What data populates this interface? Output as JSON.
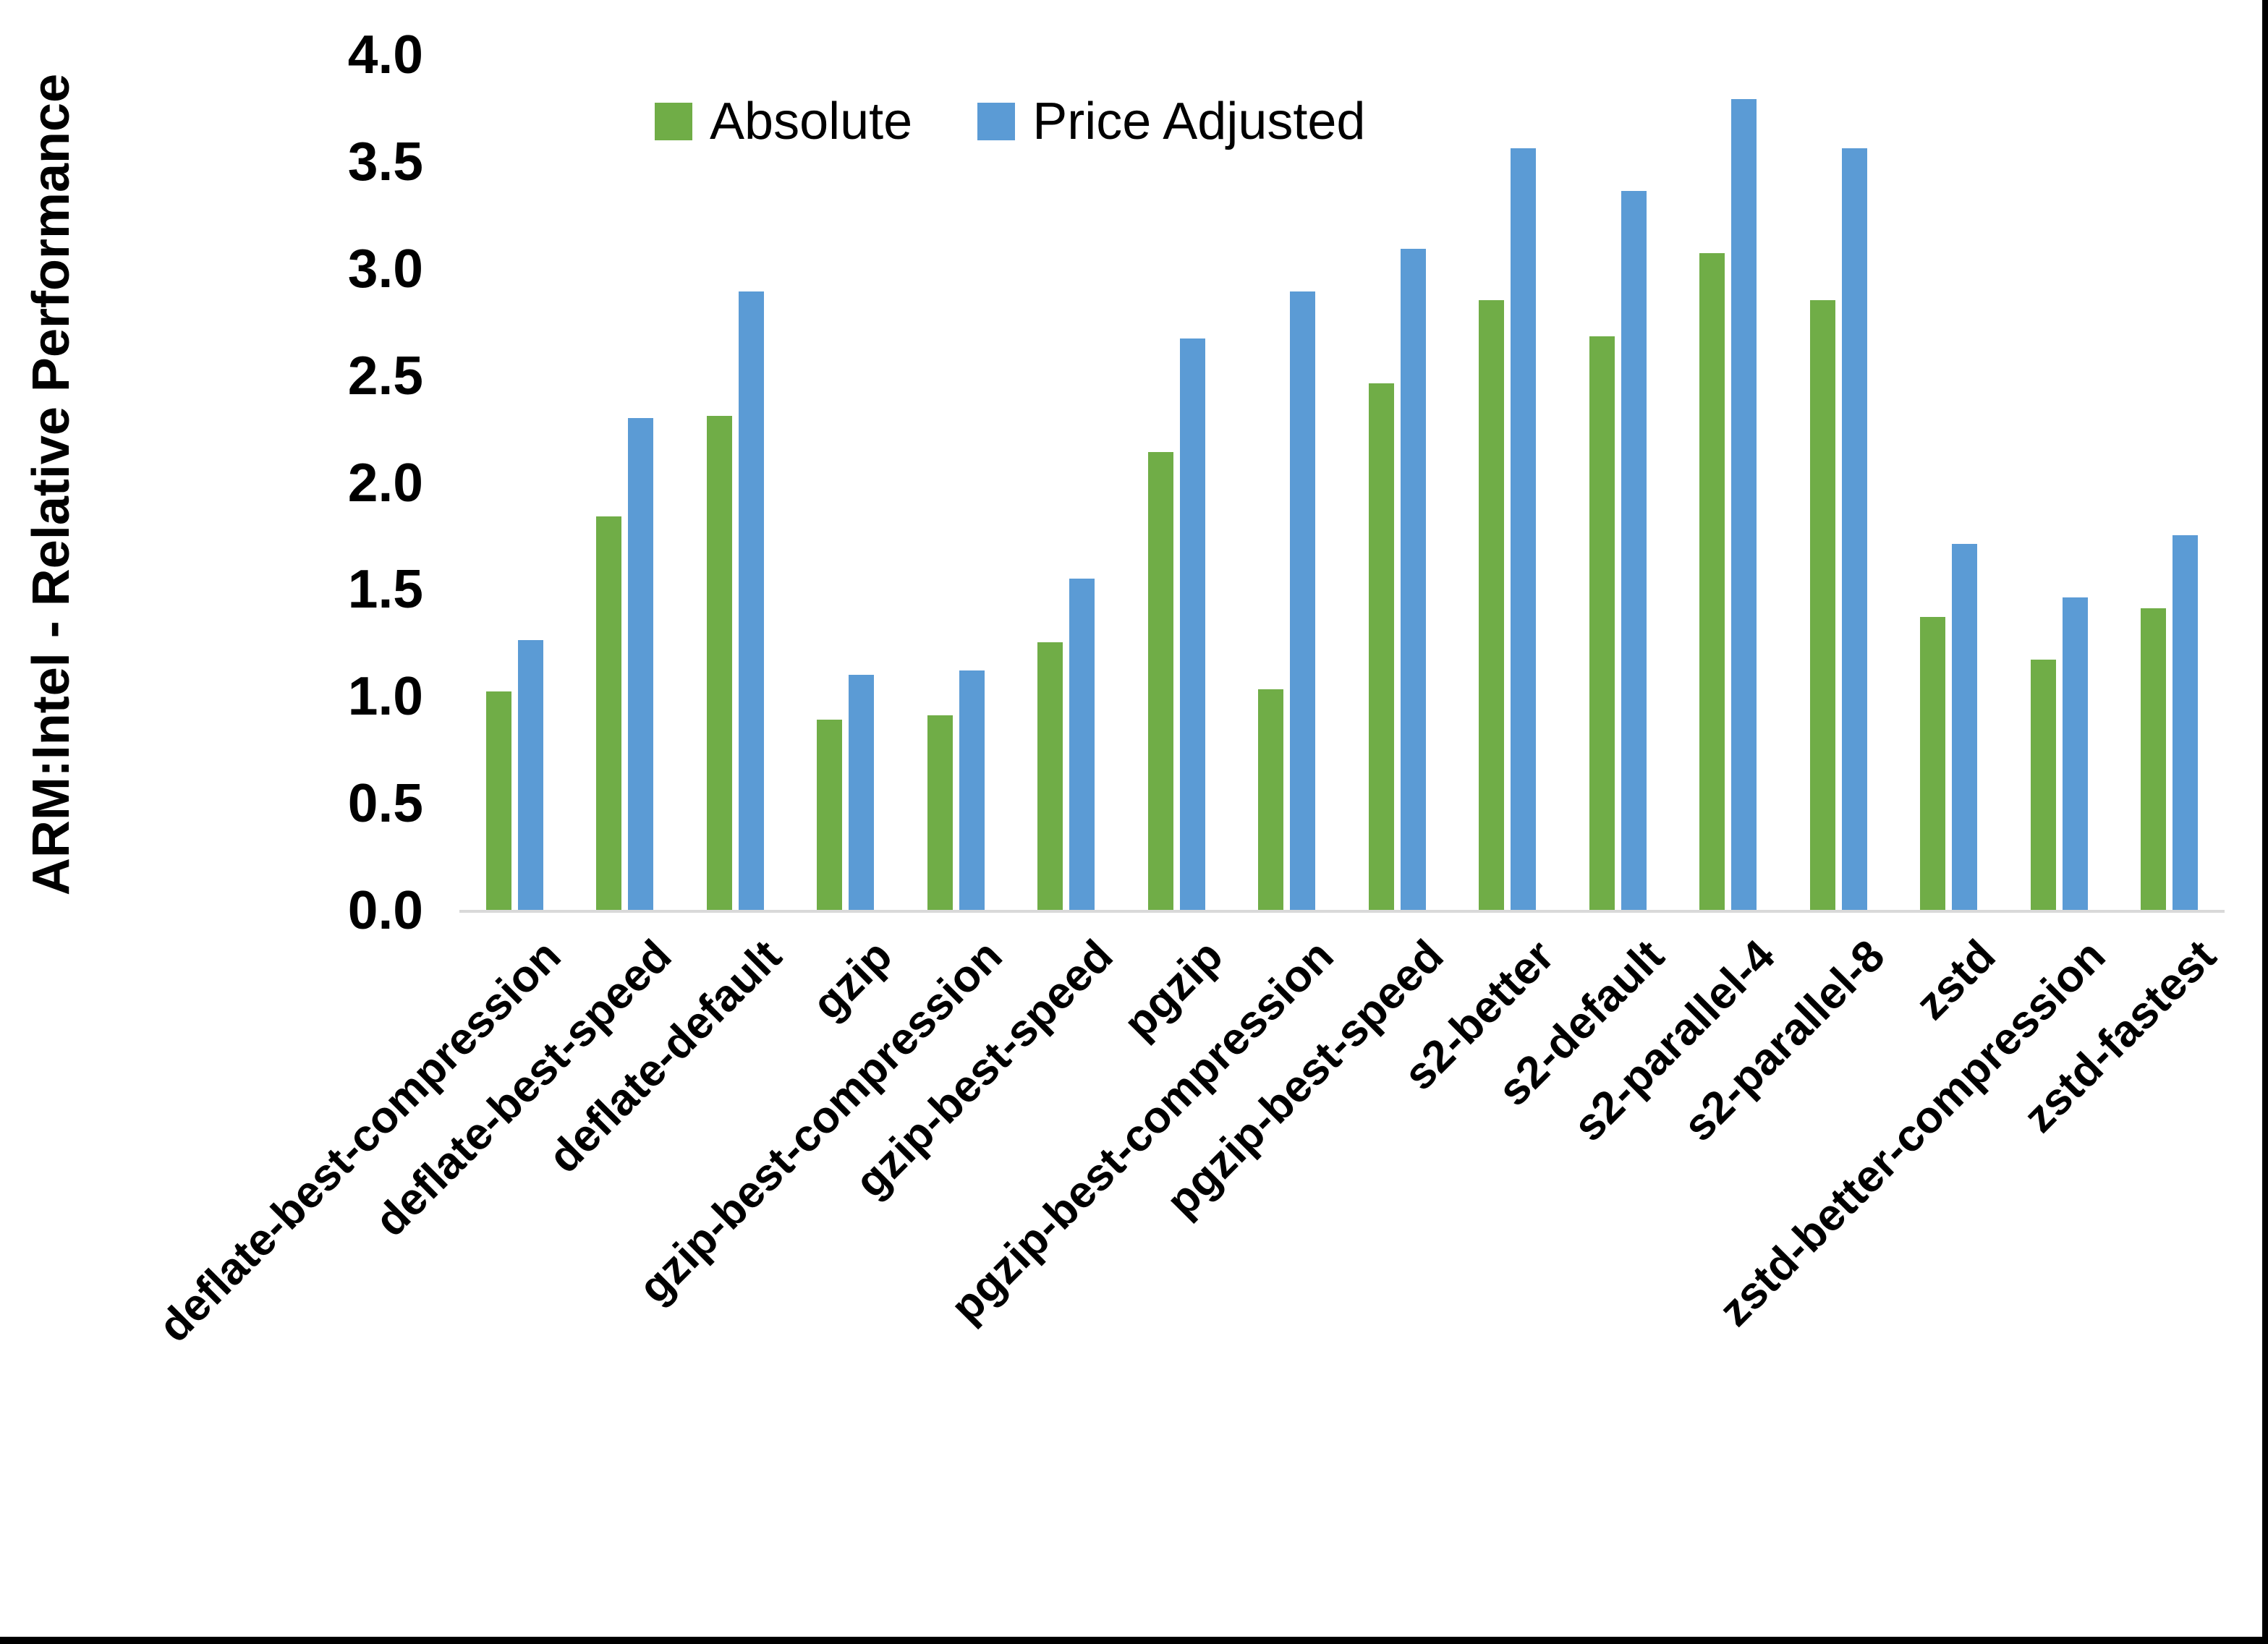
{
  "figure": {
    "background_color": "#FFFFFF",
    "edge_bar_color": "#000000",
    "axis_line_color": "#D9D9D9",
    "text_color": "#000000"
  },
  "chart_data": {
    "type": "bar",
    "title": "",
    "xlabel": "",
    "ylabel": "ARM:Intel - Relative Performance",
    "ylim": [
      0.0,
      4.0
    ],
    "ytick_step": 0.5,
    "yticks": [
      "0.0",
      "0.5",
      "1.0",
      "1.5",
      "2.0",
      "2.5",
      "3.0",
      "3.5",
      "4.0"
    ],
    "grid": false,
    "legend_position": "top-center",
    "categories": [
      "deflate-best-compression",
      "deflate-best-speed",
      "deflate-default",
      "gzip",
      "gzip-best-compression",
      "gzip-best-speed",
      "pgzip",
      "pgzip-best-compression",
      "pgzip-best-speed",
      "s2-better",
      "s2-default",
      "s2-parallel-4",
      "s2-parallel-8",
      "zstd",
      "zstd-better-compression",
      "zstd-fastest"
    ],
    "series": [
      {
        "name": "Absolute",
        "color": "#70AD47",
        "values": [
          1.02,
          1.84,
          2.31,
          0.89,
          0.91,
          1.25,
          2.14,
          1.03,
          2.46,
          2.85,
          2.68,
          3.07,
          2.85,
          1.37,
          1.17,
          1.41
        ]
      },
      {
        "name": "Price Adjusted",
        "color": "#5B9BD5",
        "values": [
          1.26,
          2.3,
          2.89,
          1.1,
          1.12,
          1.55,
          2.67,
          2.89,
          3.09,
          3.56,
          3.36,
          3.79,
          3.56,
          1.71,
          1.46,
          1.75
        ]
      }
    ]
  }
}
